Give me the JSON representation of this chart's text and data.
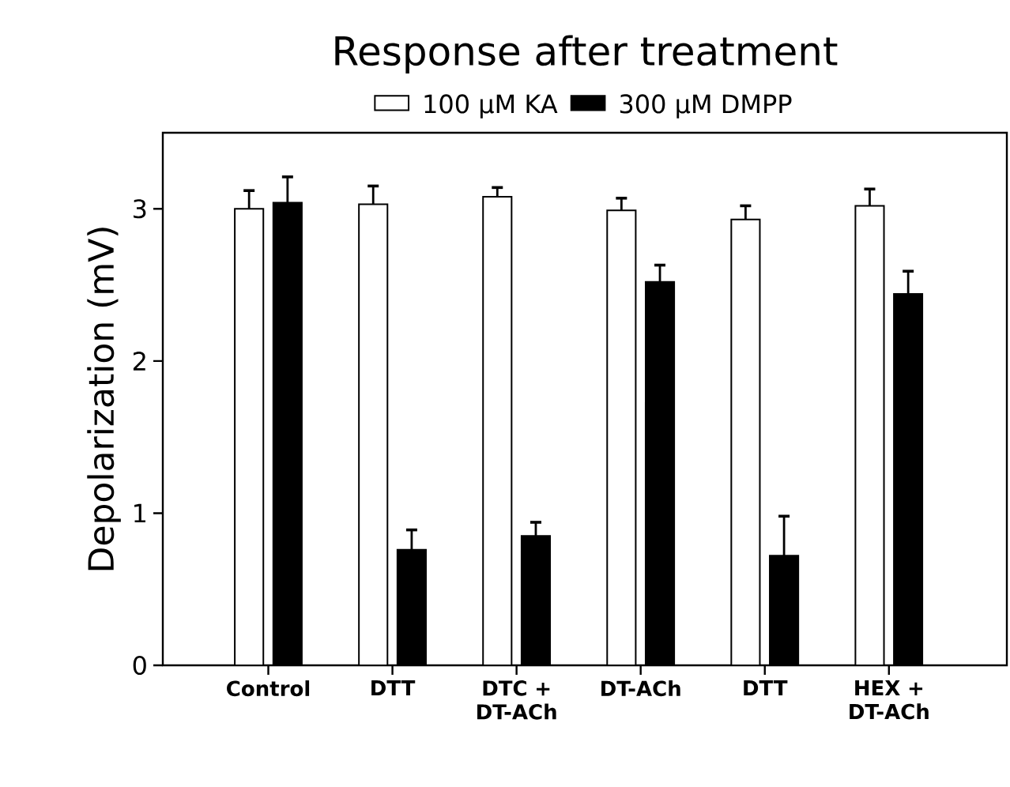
{
  "chart_data": {
    "type": "bar",
    "title": "Response after treatment",
    "ylabel": "Depolarization (mV)",
    "categories": [
      "Control",
      "DTT",
      "DTC + DT-ACh",
      "DT-ACh",
      "DTT",
      "HEX + DT-ACh"
    ],
    "series": [
      {
        "name": "100 μM KA",
        "color": "#ffffff",
        "values": [
          3.0,
          3.03,
          3.08,
          2.99,
          2.93,
          3.02
        ],
        "errors": [
          [
            3.0,
            3.12
          ],
          [
            3.03,
            3.15
          ],
          [
            3.08,
            3.14
          ],
          [
            2.99,
            3.07
          ],
          [
            2.93,
            3.02
          ],
          [
            3.02,
            3.13
          ]
        ]
      },
      {
        "name": "300 μM DMPP",
        "color": "#000000",
        "values": [
          3.04,
          0.76,
          0.85,
          2.52,
          0.72,
          2.44
        ],
        "errors": [
          [
            3.04,
            3.21
          ],
          [
            0.76,
            0.89
          ],
          [
            0.85,
            0.94
          ],
          [
            2.52,
            2.63
          ],
          [
            0.72,
            0.98
          ],
          [
            2.44,
            2.59
          ]
        ]
      }
    ],
    "ylim": [
      0,
      3.5
    ],
    "yticks": [
      0,
      1,
      2,
      3
    ],
    "legend": "top"
  }
}
